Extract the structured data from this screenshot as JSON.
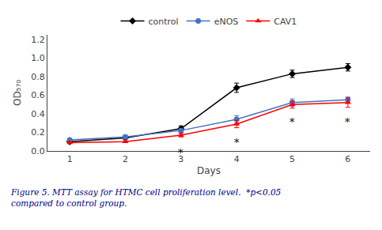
{
  "chart_data": {
    "type": "line",
    "x": [
      1,
      2,
      3,
      4,
      5,
      6
    ],
    "series": [
      {
        "name": "control",
        "color": "#000000",
        "marker": "diamond",
        "values": [
          0.1,
          0.14,
          0.24,
          0.68,
          0.83,
          0.9
        ],
        "errors": [
          0.01,
          0.01,
          0.03,
          0.05,
          0.04,
          0.04
        ]
      },
      {
        "name": "eNOS",
        "color": "#4472C4",
        "marker": "circle",
        "values": [
          0.12,
          0.15,
          0.22,
          0.34,
          0.52,
          0.55
        ],
        "errors": [
          0.01,
          0.02,
          0.02,
          0.04,
          0.04,
          0.03
        ]
      },
      {
        "name": "CAV1",
        "color": "#FF0000",
        "marker": "triangle-up",
        "values": [
          0.09,
          0.1,
          0.17,
          0.29,
          0.5,
          0.52
        ],
        "errors": [
          0.01,
          0.01,
          0.02,
          0.04,
          0.04,
          0.05
        ]
      }
    ],
    "xlabel": "Days",
    "ylabel": "OD₅₇₀",
    "xlim": [
      0.6,
      6.4
    ],
    "xticks": [
      1,
      2,
      3,
      4,
      5,
      6
    ],
    "ylim": [
      0.0,
      1.25
    ],
    "yticks": [
      {
        "value": 0.0,
        "label": "0.0"
      },
      0.2,
      0.4,
      0.6,
      0.8,
      {
        "value": 1.0,
        "label": "1.0"
      },
      1.2
    ],
    "annotations": [
      {
        "text": "*",
        "x": 3,
        "y": 0.06
      },
      {
        "text": "*",
        "x": 4,
        "y": 0.17
      },
      {
        "text": "*",
        "x": 5,
        "y": 0.39
      },
      {
        "text": "*",
        "x": 6,
        "y": 0.39
      }
    ],
    "caption": "Figure 5. MTT assay for HTMC cell proliferation level.  *p<0.05\ncompared to control group.",
    "caption_color": "#00008B",
    "legend": "top",
    "grid": false
  }
}
